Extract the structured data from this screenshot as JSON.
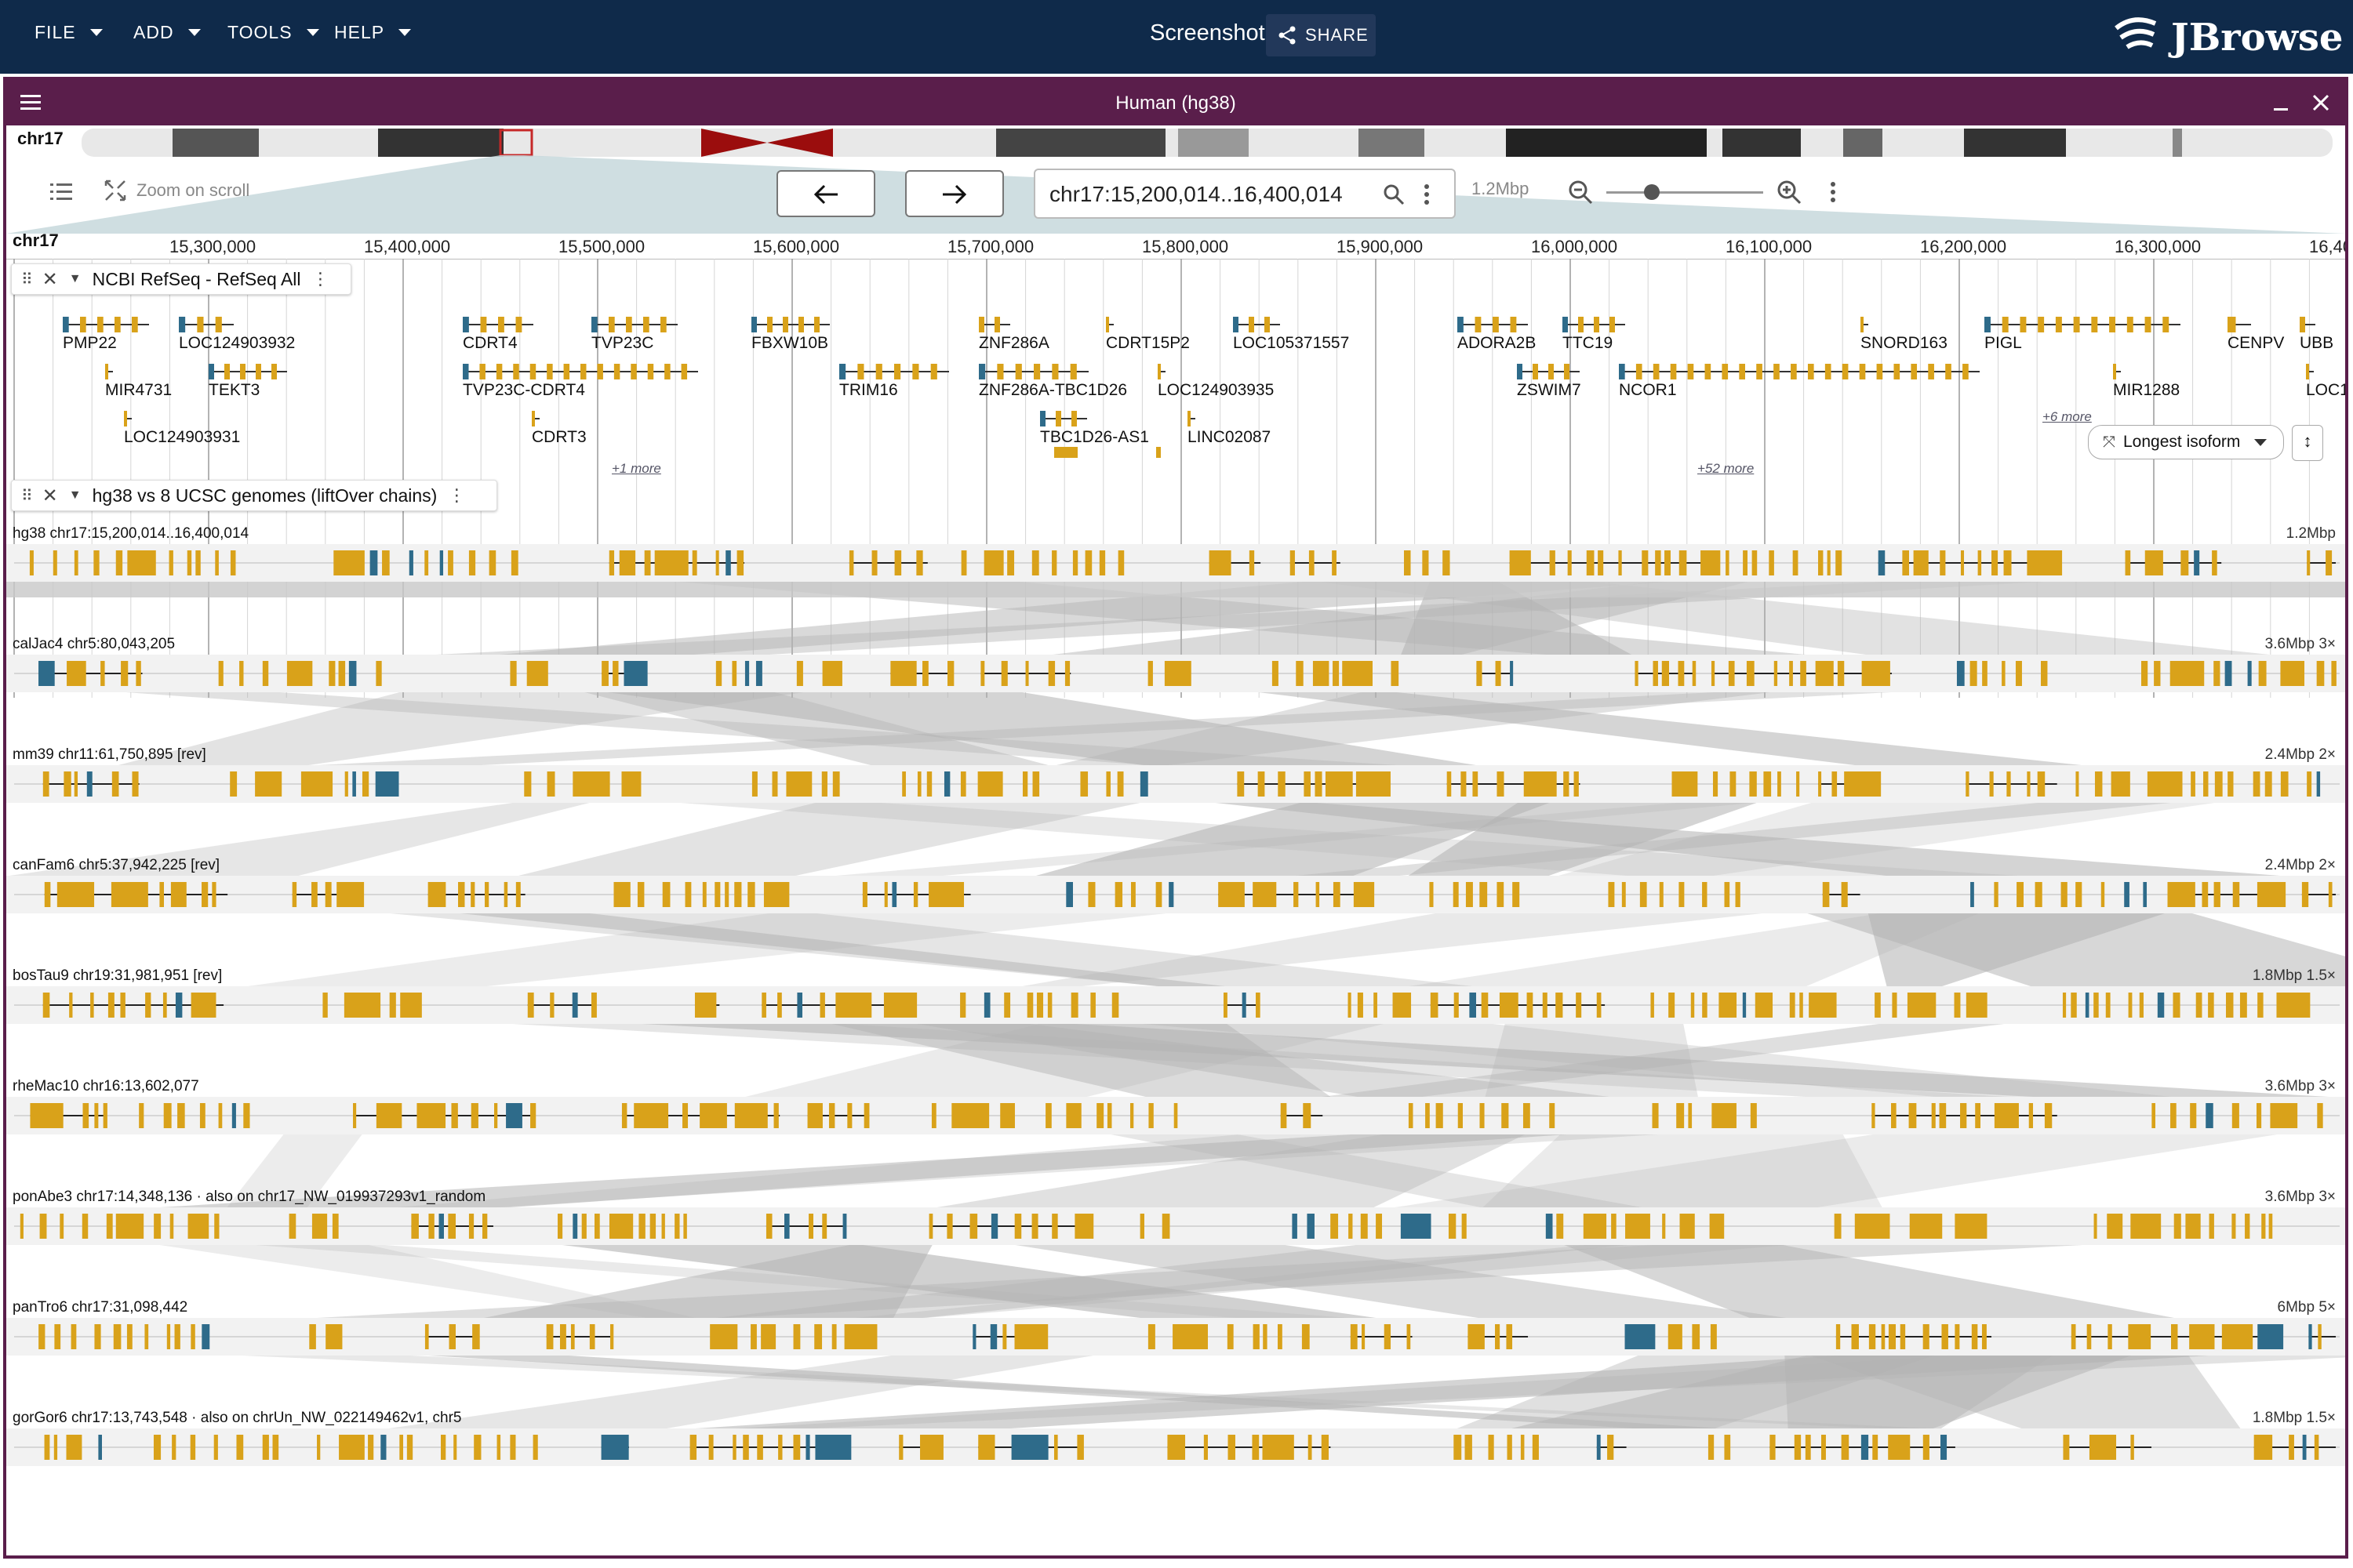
{
  "menus": [
    {
      "label": "FILE"
    },
    {
      "label": "ADD"
    },
    {
      "label": "TOOLS"
    },
    {
      "label": "HELP"
    }
  ],
  "header": {
    "screenshot_label": "Screenshot",
    "share_label": "SHARE",
    "logo_text": "JBrowse"
  },
  "view": {
    "title": "Human (hg38)",
    "chromosome": "chr17",
    "zoom_on_scroll_label": "Zoom on scroll",
    "location": "chr17:15,200,014..16,400,014",
    "bp_per_view": "1.2Mbp",
    "scale_ticks": [
      "15,300,000",
      "15,400,000",
      "15,500,000",
      "15,600,000",
      "15,700,000",
      "15,800,000",
      "15,900,000",
      "16,000,000",
      "16,100,000",
      "16,200,000",
      "16,300,000",
      "16,40"
    ]
  },
  "refseq_track": {
    "title": "NCBI RefSeq - RefSeq All",
    "genes": [
      "PMP22",
      "LOC124903932",
      "CDRT4",
      "TVP23C",
      "FBXW10B",
      "ZNF286A",
      "CDRT15P2",
      "LOC105371557",
      "ADORA2B",
      "TTC19",
      "SNORD163",
      "PIGL",
      "CENPV",
      "UBB",
      "MIR4731",
      "TEKT3",
      "TVP23C-CDRT4",
      "TRIM16",
      "ZNF286A-TBC1D26",
      "LOC124903935",
      "ZSWIM7",
      "NCOR1",
      "MIR1288",
      "LOC1",
      "LOC124903931",
      "CDRT3",
      "TBC1D26-AS1",
      "LINC02087"
    ],
    "more_links": [
      "+1 more",
      "+6 more",
      "+52 more"
    ],
    "isoform_button": "Longest isoform"
  },
  "synteny_track": {
    "title": "hg38 vs 8 UCSC genomes (liftOver chains)",
    "rows": [
      {
        "label": "hg38 chr17:15,200,014..16,400,014",
        "right": "1.2Mbp"
      },
      {
        "label": "calJac4 chr5:80,043,205",
        "right": "3.6Mbp 3×"
      },
      {
        "label": "mm39 chr11:61,750,895 [rev]",
        "right": "2.4Mbp 2×"
      },
      {
        "label": "canFam6 chr5:37,942,225 [rev]",
        "right": "2.4Mbp 2×"
      },
      {
        "label": "bosTau9 chr19:31,981,951 [rev]",
        "right": "1.8Mbp 1.5×"
      },
      {
        "label": "rheMac10 chr16:13,602,077",
        "right": "3.6Mbp 3×"
      },
      {
        "label": "ponAbe3 chr17:14,348,136 · also on chr17_NW_019937293v1_random",
        "right": "3.6Mbp 3×"
      },
      {
        "label": "panTro6 chr17:31,098,442",
        "right": "6Mbp 5×"
      },
      {
        "label": "gorGor6 chr17:13,743,548 · also on chrUn_NW_022149462v1, chr5",
        "right": "1.8Mbp 1.5×"
      }
    ]
  },
  "colors": {
    "appbar": "#0f2a4a",
    "view_header": "#5a1e4b",
    "exon": "#d9a21a",
    "utr": "#2e6b8a",
    "synteny": "#b3b3b3"
  }
}
